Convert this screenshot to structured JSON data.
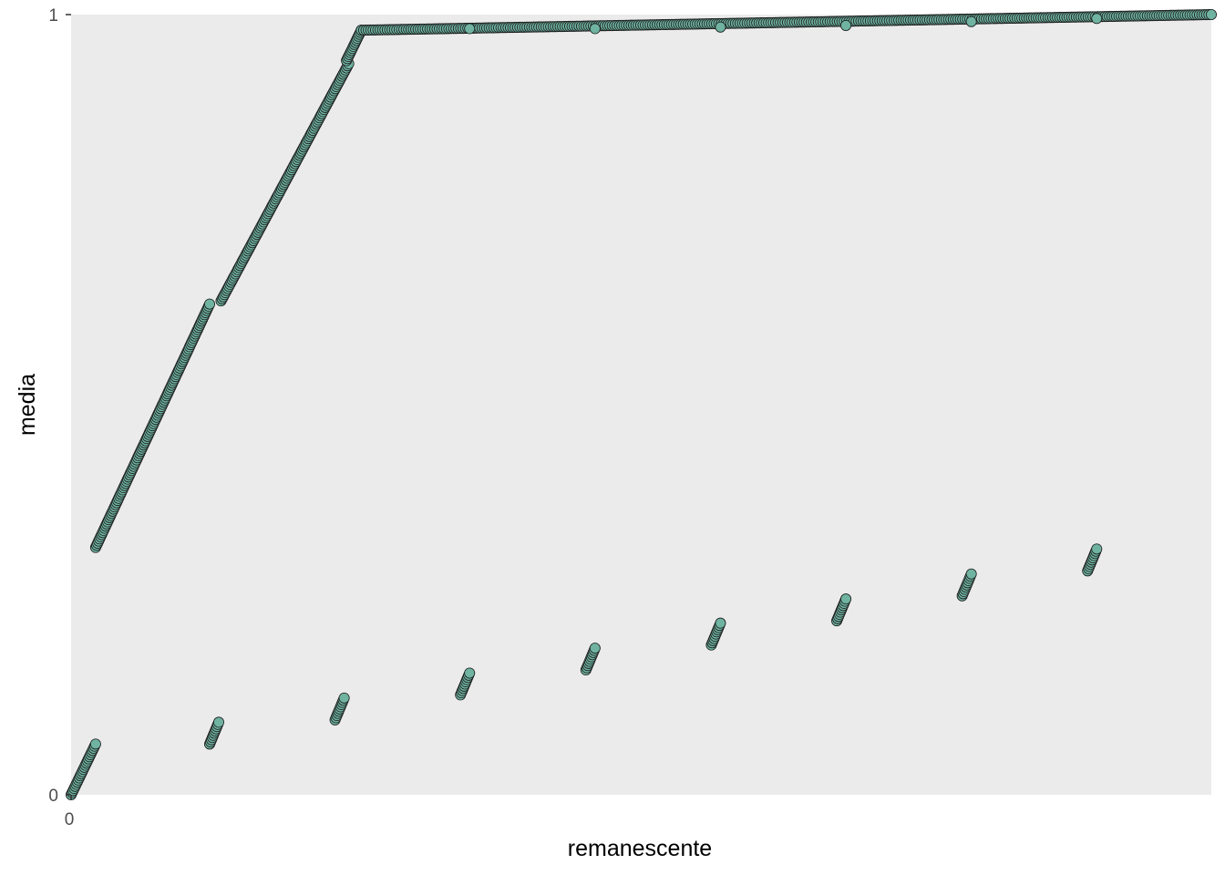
{
  "chart_data": {
    "type": "scatter",
    "title": "",
    "xlabel": "remanescente",
    "ylabel": "media",
    "x_ticks": [
      "0"
    ],
    "y_ticks": [
      "0",
      "1"
    ],
    "xlim": [
      0,
      1
    ],
    "ylim": [
      0,
      1
    ],
    "grid": false,
    "legend": "none",
    "point_fill": "#6fb3a0",
    "point_stroke": "#1a1a1a",
    "panel_background": "#ebebeb",
    "series": [
      {
        "segments": [
          {
            "x_from": 0.0,
            "x_to": 0.0215,
            "y_from": 0.0,
            "y_to": 0.065
          },
          {
            "x_from": 0.0215,
            "x_to": 0.1215,
            "y_from": 0.317,
            "y_to": 0.629
          },
          {
            "x_from": 0.1315,
            "x_to": 0.2435,
            "y_from": 0.633,
            "y_to": 0.937
          },
          {
            "x_from": 0.2415,
            "x_to": 0.2545,
            "y_from": 0.941,
            "y_to": 0.98
          },
          {
            "x_from": 0.2545,
            "x_to": 1.0,
            "y_from": 0.98,
            "y_to": 1.0
          }
        ]
      },
      {
        "segments": [
          {
            "x_from": 0.1215,
            "x_to": 0.1295,
            "y_from": 0.065,
            "y_to": 0.093
          },
          {
            "x_from": 0.2315,
            "x_to": 0.2395,
            "y_from": 0.096,
            "y_to": 0.124
          },
          {
            "x_from": 0.3415,
            "x_to": 0.3495,
            "y_from": 0.128,
            "y_to": 0.156
          },
          {
            "x_from": 0.4515,
            "x_to": 0.4595,
            "y_from": 0.16,
            "y_to": 0.188
          },
          {
            "x_from": 0.5615,
            "x_to": 0.5695,
            "y_from": 0.192,
            "y_to": 0.22
          },
          {
            "x_from": 0.6715,
            "x_to": 0.6795,
            "y_from": 0.223,
            "y_to": 0.251
          },
          {
            "x_from": 0.7815,
            "x_to": 0.7895,
            "y_from": 0.255,
            "y_to": 0.283
          },
          {
            "x_from": 0.8915,
            "x_to": 0.8995,
            "y_from": 0.287,
            "y_to": 0.315
          }
        ]
      },
      {
        "points": [
          {
            "x": 0.3495,
            "y": 0.982
          },
          {
            "x": 0.4595,
            "y": 0.982
          },
          {
            "x": 0.5695,
            "y": 0.984
          },
          {
            "x": 0.6795,
            "y": 0.986
          },
          {
            "x": 0.7895,
            "y": 0.991
          },
          {
            "x": 0.8995,
            "y": 0.995
          }
        ]
      }
    ]
  }
}
